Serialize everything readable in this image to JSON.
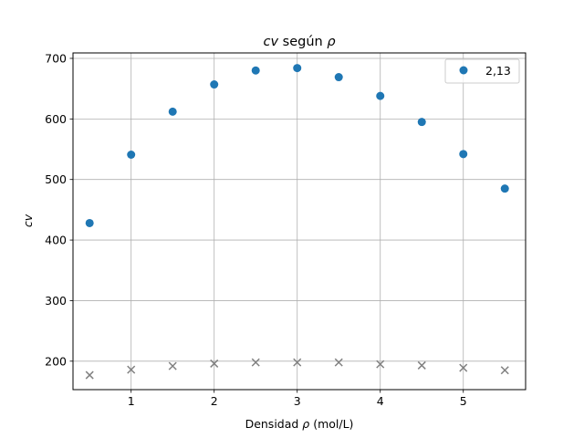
{
  "chart_data": {
    "type": "scatter",
    "title_pre": "cv",
    "title_mid": " según ",
    "title_post": "ρ",
    "xlabel_pre": "Densidad ",
    "xlabel_sym": "ρ",
    "xlabel_post": " (mol/L)",
    "ylabel": "cv",
    "xlim": [
      0.3,
      5.75
    ],
    "ylim": [
      153,
      709
    ],
    "xticks": [
      1,
      2,
      3,
      4,
      5
    ],
    "yticks": [
      200,
      300,
      400,
      500,
      600,
      700
    ],
    "grid": true,
    "legend_position": "top-right",
    "series": [
      {
        "name": "2,13",
        "marker": "circle",
        "color": "#1f77b4",
        "x": [
          0.5,
          1.0,
          1.5,
          2.0,
          2.5,
          3.0,
          3.5,
          4.0,
          4.5,
          5.0,
          5.5
        ],
        "y": [
          428,
          541,
          612,
          657,
          680,
          684,
          669,
          638,
          595,
          542,
          485
        ]
      },
      {
        "marker": "x",
        "color": "#808080",
        "x": [
          0.5,
          1.0,
          1.5,
          2.0,
          2.5,
          3.0,
          3.5,
          4.0,
          4.5,
          5.0,
          5.5
        ],
        "y": [
          177,
          186,
          192,
          196,
          198,
          198,
          198,
          195,
          193,
          189,
          185
        ]
      }
    ]
  }
}
